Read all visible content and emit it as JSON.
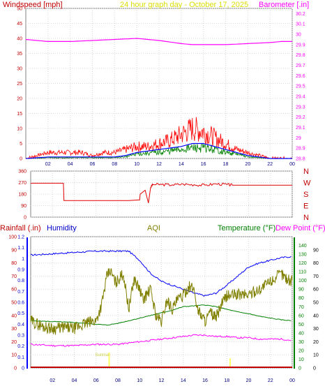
{
  "header": {
    "wind_label": "Windspeed [mph]",
    "date_label": "24 hour graph day - October 17, 2025",
    "baro_label": "Barometer [.in]"
  },
  "bottom_header": {
    "rain_label": "Rainfall (.in)",
    "humidity_label": "Humidity",
    "aqi_label": "AQI",
    "temp_label": "Temperature (°F)",
    "dew_label": "Dew Point (°F)"
  },
  "colors": {
    "wind_avg": "#0000ff",
    "wind_gust": "#ff0000",
    "wind_green": "#008000",
    "baro": "#ff00ff",
    "title": "#dddd00",
    "direction": "#e00000",
    "humidity": "#0000ff",
    "temperature": "#008000",
    "dewpoint": "#ff00ff",
    "aqi": "#808000",
    "rain": "#c00000",
    "solar": "#ffff66"
  },
  "chart_data": [
    {
      "type": "line",
      "x_ticks": [
        "02",
        "04",
        "06",
        "08",
        "10",
        "12",
        "14",
        "16",
        "18",
        "20",
        "22",
        "00"
      ],
      "ylim_left": [
        0,
        50
      ],
      "y_ticks_left": [
        "0",
        "5",
        "10",
        "15",
        "20",
        "25",
        "30",
        "35",
        "40",
        "45",
        "50"
      ],
      "ylim_right": [
        28.8,
        30.25
      ],
      "y_ticks_right": [
        "28.8",
        "28.9",
        "29",
        "29.1",
        "29.2",
        "29.3",
        "29.4",
        "29.5",
        "29.6",
        "29.7",
        "29.8",
        "29.9",
        "30",
        "30.1",
        "30.2"
      ],
      "grid": true,
      "series": [
        {
          "key": "baro",
          "x": [
            0,
            2,
            3,
            4,
            6,
            8,
            10,
            11,
            12,
            14,
            15,
            16,
            18,
            20,
            22,
            23,
            24
          ],
          "y": [
            29.95,
            29.93,
            29.93,
            29.93,
            29.94,
            29.95,
            29.96,
            29.95,
            29.94,
            29.91,
            29.9,
            29.9,
            29.9,
            29.91,
            29.92,
            29.93,
            29.93
          ]
        },
        {
          "key": "gust",
          "x": [
            0,
            1,
            2,
            3,
            4,
            5,
            6,
            7,
            8,
            9,
            10,
            11,
            12,
            13,
            14,
            15,
            16,
            17,
            18,
            19,
            20,
            21,
            22,
            23,
            24
          ],
          "y": [
            0,
            1,
            2,
            2,
            2,
            2,
            1,
            2,
            2,
            3,
            4,
            4,
            5,
            6,
            8,
            10,
            9,
            7,
            5,
            3,
            2,
            1,
            0,
            0,
            0
          ]
        },
        {
          "key": "avg",
          "x": [
            0,
            2,
            4,
            6,
            8,
            9,
            10,
            11,
            12,
            13,
            14,
            15,
            16,
            17,
            18,
            19,
            20,
            21,
            22,
            24
          ],
          "y": [
            0,
            0.5,
            0.5,
            0.5,
            0.5,
            1,
            2,
            2.5,
            3,
            3.5,
            4,
            5,
            5,
            4,
            3,
            2,
            1,
            0.5,
            0,
            0
          ]
        },
        {
          "key": "green",
          "x": [
            0,
            2,
            4,
            6,
            8,
            9,
            10,
            11,
            12,
            13,
            14,
            15,
            16,
            17,
            18,
            19,
            20,
            21,
            22,
            24
          ],
          "y": [
            0,
            0.3,
            0.3,
            0.3,
            0.3,
            0.6,
            1.5,
            1.8,
            2,
            2.5,
            3,
            3.5,
            3.5,
            3,
            2,
            1.5,
            0.5,
            0.3,
            0,
            0
          ]
        }
      ]
    },
    {
      "type": "line",
      "x_ticks": [
        "02",
        "04",
        "06",
        "08",
        "10",
        "12",
        "14",
        "16",
        "18",
        "20",
        "22",
        "00"
      ],
      "ylim": [
        0,
        360
      ],
      "y_ticks": [
        "0",
        "90",
        "180",
        "270",
        "360"
      ],
      "y_ticks_right": [
        "N",
        "W",
        "S",
        "E",
        "N"
      ],
      "series": [
        {
          "key": "direction",
          "x": [
            0,
            2,
            3,
            3.05,
            5,
            7,
            9,
            10,
            10.05,
            10.5,
            10.8,
            11,
            11.2,
            12,
            13,
            14,
            15,
            16,
            17,
            18,
            18.5,
            20,
            22,
            24
          ],
          "y": [
            265,
            265,
            265,
            130,
            130,
            130,
            130,
            135,
            180,
            210,
            110,
            230,
            255,
            255,
            252,
            258,
            253,
            250,
            260,
            255,
            250,
            250,
            250,
            250
          ]
        }
      ]
    },
    {
      "type": "line",
      "x_ticks": [
        "02",
        "04",
        "06",
        "08",
        "10",
        "12",
        "14",
        "16",
        "18",
        "20",
        "22",
        "00"
      ],
      "ylim_rain": [
        0,
        1.2
      ],
      "y_ticks_rain": [
        "0",
        "0.1",
        "0.2",
        "0.3",
        "0.4",
        "0.5",
        "0.6",
        "0.7",
        "0.8",
        "0.9",
        "1",
        "1.1",
        "1.2"
      ],
      "ylim_percent": [
        0,
        100
      ],
      "y_ticks_percent": [
        "0",
        "10",
        "20",
        "30",
        "40",
        "50",
        "60",
        "70",
        "80",
        "90",
        "100"
      ],
      "ylim_temp": [
        0,
        150
      ],
      "y_ticks_temp": [
        "0",
        "10",
        "20",
        "30",
        "40",
        "50",
        "60",
        "70",
        "80",
        "90",
        "100",
        "110",
        "120",
        "130",
        "140"
      ],
      "y_ticks_dew": [
        "0",
        "10",
        "20",
        "30",
        "40",
        "50",
        "60",
        "70",
        "80",
        "90"
      ],
      "annotation": "Sunrise",
      "annotation_x": 7.2,
      "series": [
        {
          "key": "humidity",
          "x": [
            0,
            2,
            4,
            6,
            8,
            9,
            10,
            11,
            12,
            13,
            14,
            15,
            16,
            17,
            18,
            19,
            20,
            21,
            22,
            23,
            24
          ],
          "y": [
            86,
            87,
            88,
            89,
            89,
            89,
            82,
            72,
            66,
            63,
            60,
            57,
            55,
            57,
            63,
            70,
            77,
            80,
            82,
            84,
            85
          ]
        },
        {
          "key": "temperature",
          "x": [
            0,
            2,
            4,
            6,
            7,
            8,
            9,
            10,
            11,
            12,
            13,
            14,
            15,
            16,
            17,
            18,
            19,
            20,
            21,
            22,
            23,
            24
          ],
          "y": [
            54,
            53,
            52,
            50,
            49,
            51,
            54,
            57,
            60,
            63,
            66,
            70,
            71,
            72,
            70,
            67,
            64,
            62,
            59,
            57,
            55,
            54
          ]
        },
        {
          "key": "dewpoint",
          "x": [
            0,
            2,
            4,
            6,
            8,
            9,
            10,
            11,
            12,
            13,
            14,
            15,
            16,
            17,
            18,
            19,
            20,
            21,
            22,
            23,
            24
          ],
          "y": [
            18,
            17,
            17,
            18,
            18,
            19,
            20,
            21,
            22,
            23,
            24,
            25,
            25,
            24,
            24,
            23,
            23,
            22,
            22,
            22,
            21
          ]
        },
        {
          "key": "aqi",
          "x": [
            0,
            1,
            2,
            3,
            4,
            5,
            6,
            6.5,
            7,
            7.3,
            7.8,
            8.5,
            9,
            9.5,
            10,
            10.3,
            11,
            11.5,
            12,
            12.5,
            13,
            13.5,
            14,
            14.5,
            15,
            15.3,
            16,
            16.5,
            17,
            17.5,
            18,
            19,
            20,
            21,
            22,
            23,
            23.5,
            24
          ],
          "y": [
            36,
            32,
            30,
            31,
            30,
            34,
            36,
            48,
            70,
            74,
            65,
            72,
            45,
            68,
            60,
            52,
            60,
            40,
            35,
            52,
            45,
            52,
            55,
            62,
            60,
            45,
            36,
            42,
            38,
            48,
            55,
            56,
            56,
            60,
            66,
            72,
            68,
            66
          ]
        },
        {
          "key": "rain",
          "x": [
            0,
            24
          ],
          "y": [
            0,
            0
          ]
        }
      ]
    }
  ]
}
